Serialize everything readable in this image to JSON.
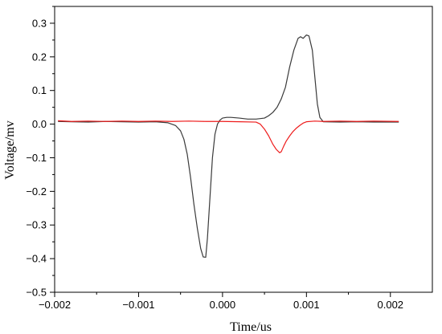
{
  "chart_data": {
    "type": "line",
    "title": "",
    "xlabel": "Time/us",
    "ylabel": "Voltage/mv",
    "xlim": [
      -0.002,
      0.0025
    ],
    "ylim": [
      -0.5,
      0.35
    ],
    "x_ticks": [
      -0.002,
      -0.001,
      0.0,
      0.001,
      0.002
    ],
    "x_tick_labels": [
      "−0.002",
      "−0.001",
      "0.000",
      "0.001",
      "0.002"
    ],
    "y_ticks": [
      -0.5,
      -0.4,
      -0.3,
      -0.2,
      -0.1,
      0.0,
      0.1,
      0.2,
      0.3
    ],
    "y_tick_labels": [
      "−0.5",
      "−0.4",
      "−0.3",
      "−0.2",
      "−0.1",
      "0.0",
      "0.1",
      "0.2",
      "0.3"
    ],
    "grid": false,
    "legend": "none",
    "series": [
      {
        "color": "#3a3a3a",
        "x": [
          -0.00196,
          -0.0018,
          -0.0016,
          -0.0014,
          -0.0012,
          -0.001,
          -0.0008,
          -0.00065,
          -0.00056,
          -0.0005,
          -0.00046,
          -0.00042,
          -0.00038,
          -0.00034,
          -0.0003,
          -0.00026,
          -0.00023,
          -0.0002,
          -0.00018,
          -0.00015,
          -0.00012,
          -9e-05,
          -6e-05,
          -3e-05,
          0.0,
          5e-05,
          0.0001,
          0.0002,
          0.0003,
          0.0004,
          0.0005,
          0.00055,
          0.0006,
          0.00065,
          0.0007,
          0.00075,
          0.0008,
          0.00085,
          0.0009,
          0.00093,
          0.00096,
          0.001,
          0.00103,
          0.00107,
          0.0011,
          0.00113,
          0.00116,
          0.0012,
          0.0014,
          0.0016,
          0.0018,
          0.0021
        ],
        "y": [
          0.008,
          0.007,
          0.006,
          0.008,
          0.007,
          0.006,
          0.007,
          0.004,
          -0.004,
          -0.02,
          -0.045,
          -0.09,
          -0.16,
          -0.24,
          -0.31,
          -0.37,
          -0.395,
          -0.396,
          -0.34,
          -0.22,
          -0.1,
          -0.03,
          0.0,
          0.012,
          0.018,
          0.02,
          0.02,
          0.018,
          0.015,
          0.015,
          0.018,
          0.025,
          0.035,
          0.05,
          0.075,
          0.11,
          0.17,
          0.22,
          0.255,
          0.26,
          0.255,
          0.265,
          0.262,
          0.22,
          0.14,
          0.06,
          0.02,
          0.007,
          0.006,
          0.007,
          0.006,
          0.006
        ]
      },
      {
        "color": "#ee1c1c",
        "x": [
          -0.00196,
          -0.0018,
          -0.0016,
          -0.0014,
          -0.0012,
          -0.001,
          -0.0008,
          -0.0006,
          -0.0004,
          -0.0002,
          0.0,
          0.0002,
          0.0004,
          0.00045,
          0.0005,
          0.00055,
          0.0006,
          0.00064,
          0.00068,
          0.0007,
          0.00073,
          0.00076,
          0.0008,
          0.00084,
          0.00088,
          0.00092,
          0.00096,
          0.001,
          0.0011,
          0.0012,
          0.0014,
          0.0016,
          0.0018,
          0.0021
        ],
        "y": [
          0.01,
          0.008,
          0.009,
          0.008,
          0.009,
          0.008,
          0.009,
          0.008,
          0.009,
          0.008,
          0.008,
          0.007,
          0.006,
          0.0,
          -0.015,
          -0.035,
          -0.06,
          -0.075,
          -0.085,
          -0.082,
          -0.065,
          -0.05,
          -0.035,
          -0.022,
          -0.012,
          -0.004,
          0.003,
          0.007,
          0.009,
          0.008,
          0.009,
          0.008,
          0.009,
          0.008
        ]
      }
    ]
  }
}
